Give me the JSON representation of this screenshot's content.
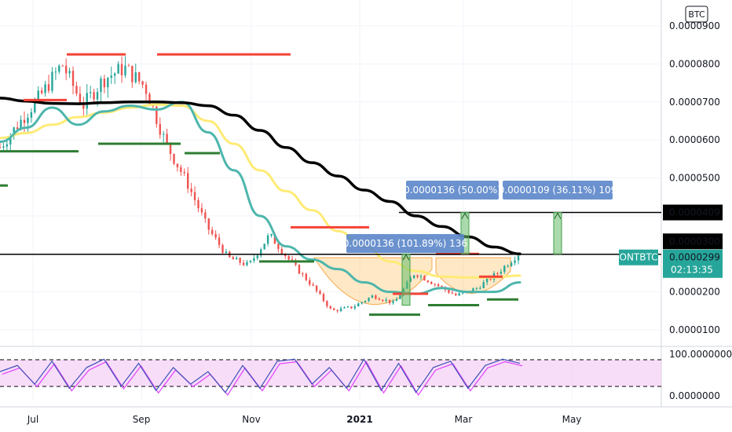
{
  "chart_data": {
    "type": "candlestick",
    "symbol": "ONTBTC",
    "currency_badge": "BTC",
    "price_axis_labels": [
      "0.0000900",
      "0.0000800",
      "0.0000700",
      "0.0000600",
      "0.0000500",
      "0.0000400",
      "0.0000300",
      "0.0000200",
      "0.0000100"
    ],
    "price_axis_values": [
      9e-05,
      8e-05,
      7e-05,
      6e-05,
      5e-05,
      4e-05,
      3e-05,
      2e-05,
      1e-05
    ],
    "y_range": [
      5.7e-06,
      9.32e-05
    ],
    "time_labels": [
      {
        "text": "Jul",
        "bold": false
      },
      {
        "text": "Sep",
        "bold": false
      },
      {
        "text": "Nov",
        "bold": false
      },
      {
        "text": "2021",
        "bold": true
      },
      {
        "text": "Mar",
        "bold": false
      },
      {
        "text": "May",
        "bold": false
      }
    ],
    "price_markers": [
      {
        "value": "0.0000409",
        "price": 4.09e-05,
        "style": "black"
      },
      {
        "value": "0.0000300",
        "price": 3e-05,
        "style": "black"
      },
      {
        "value": "0.0000299",
        "price": 2.99e-05,
        "style": "teal",
        "countdown": "02:13:35",
        "symbol": "ONTBTC"
      }
    ],
    "horizontal_lines": [
      4.09e-05,
      2.99e-05
    ],
    "measure_labels": [
      {
        "text": "0.0000136 (101.89%) 136",
        "price": 3.15e-05
      },
      {
        "text": "0.0000136 (50.00%)",
        "price": 4.75e-05
      },
      {
        "text": "0.0000109 (36.11%) 109",
        "price": 4.75e-05
      }
    ],
    "ma_200_black": [
      7.1e-05,
      7.02e-05,
      6.96e-05,
      6.95e-05,
      6.98e-05,
      7e-05,
      7e-05,
      6.98e-05,
      6.9e-05,
      6.65e-05,
      6.25e-05,
      5.8e-05,
      5.4e-05,
      5.05e-05,
      4.68e-05,
      4.38e-05,
      4e-05,
      3.72e-05,
      3.45e-05,
      3.18e-05,
      3e-05
    ],
    "ma_100_yellow": [
      6.05e-05,
      6.18e-05,
      6.4e-05,
      6.6e-05,
      6.72e-05,
      6.85e-05,
      6.93e-05,
      6.9e-05,
      6.5e-05,
      5.9e-05,
      5.2e-05,
      4.65e-05,
      4.15e-05,
      3.6e-05,
      3.2e-05,
      2.8e-05,
      2.55e-05,
      2.4e-05,
      2.38e-05,
      2.38e-05,
      2.43e-05
    ],
    "ma_50_teal": [
      5.95e-05,
      6.32e-05,
      6.85e-05,
      6.4e-05,
      6.75e-05,
      6.9e-05,
      6.8e-05,
      7e-05,
      6.2e-05,
      5.2e-05,
      4e-05,
      3.2e-05,
      2.85e-05,
      2.6e-05,
      2.25e-05,
      2e-05,
      1.95e-05,
      2.1e-05,
      2e-05,
      2e-05,
      2.25e-05
    ],
    "price_path": [
      5.8e-05,
      6.5e-05,
      7.2e-05,
      8e-05,
      6.9e-05,
      7.6e-05,
      7.9e-05,
      7.4e-05,
      5.9e-05,
      4.9e-05,
      3.7e-05,
      2.9e-05,
      2.7e-05,
      3.5e-05,
      2.8e-05,
      2.2e-05,
      1.5e-05,
      1.6e-05,
      1.9e-05,
      1.7e-05,
      2.5e-05,
      2.2e-05,
      1.9e-05,
      2.1e-05,
      2.5e-05,
      3e-05
    ],
    "rsi": {
      "labels": [
        "100.0000000",
        "0.0000000"
      ],
      "values": [
        60,
        75,
        30,
        85,
        20,
        70,
        90,
        25,
        80,
        15,
        70,
        30,
        60,
        10,
        75,
        20,
        85,
        90,
        30,
        70,
        20,
        90,
        15,
        80,
        10,
        70,
        85,
        20,
        75,
        90,
        80
      ]
    },
    "grid": true
  }
}
